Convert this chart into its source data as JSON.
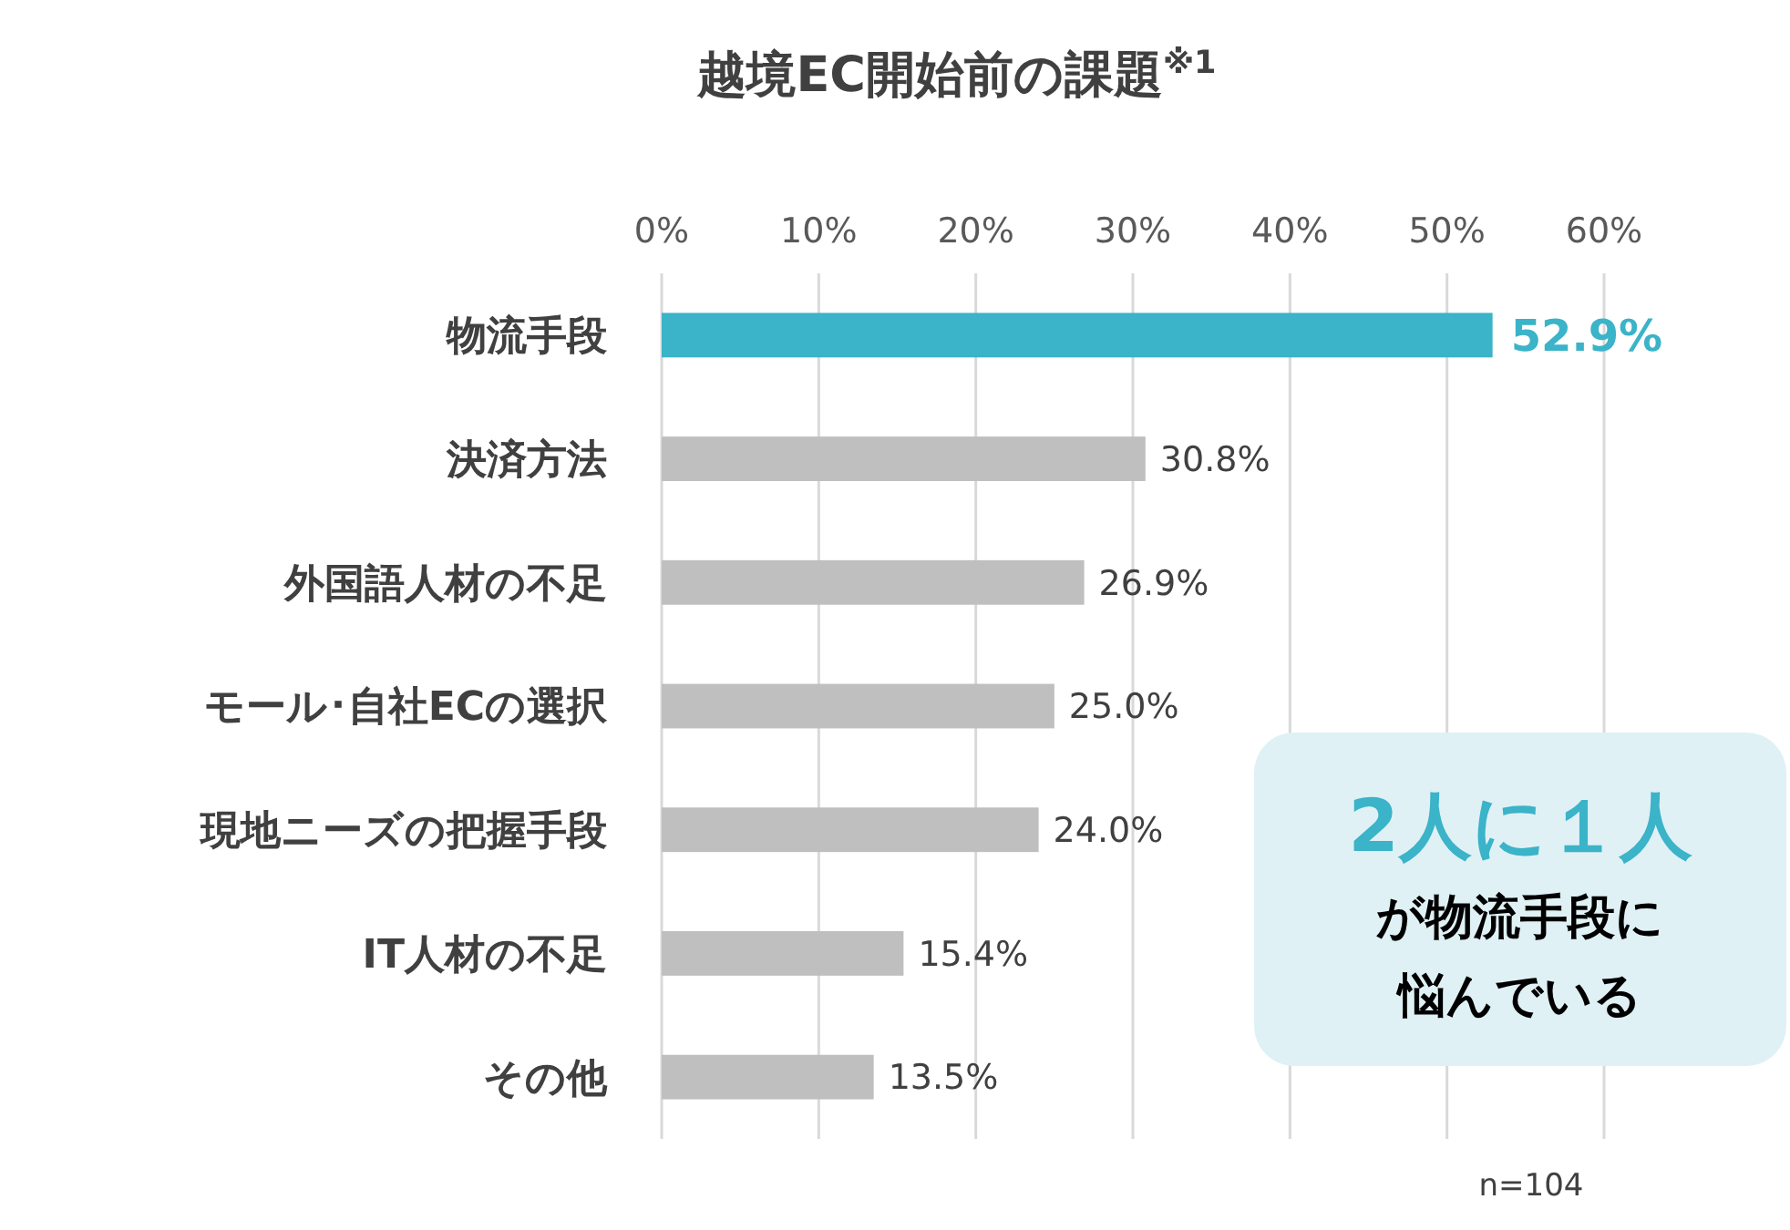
{
  "chart_data": {
    "type": "bar",
    "orientation": "horizontal",
    "title": "越境EC開始前の課題$^{※1}$",
    "categories": [
      "物流手段",
      "決済方法",
      "外国語人材の不足",
      "モール･自社ECの選択",
      "現地ニーズの把握手段",
      "IT人材の不足",
      "その他"
    ],
    "values": [
      52.9,
      30.8,
      26.9,
      25.0,
      24.0,
      15.4,
      13.5
    ],
    "colors": [
      "#3bb3c8",
      "#bfbfbf",
      "#bfbfbf",
      "#bfbfbf",
      "#bfbfbf",
      "#bfbfbf",
      "#bfbfbf"
    ],
    "value_labels": [
      "52.9%",
      "30.8%",
      "26.9%",
      "25.0%",
      "24.0%",
      "15.4%",
      "13.5%"
    ],
    "xlim": [
      0,
      60
    ],
    "xticks": [
      {
        "value": 0,
        "label": "0%"
      },
      {
        "value": 10,
        "label": "10%"
      },
      {
        "value": 20,
        "label": "20%"
      },
      {
        "value": 30,
        "label": "30%"
      },
      {
        "value": 40,
        "label": "40%"
      },
      {
        "value": 50,
        "label": "50%"
      },
      {
        "value": 60,
        "label": "60%"
      }
    ],
    "grid": "x",
    "annotations": [
      "2人に１人",
      "が物流手段に",
      "悩んでいる",
      "n=104"
    ]
  }
}
